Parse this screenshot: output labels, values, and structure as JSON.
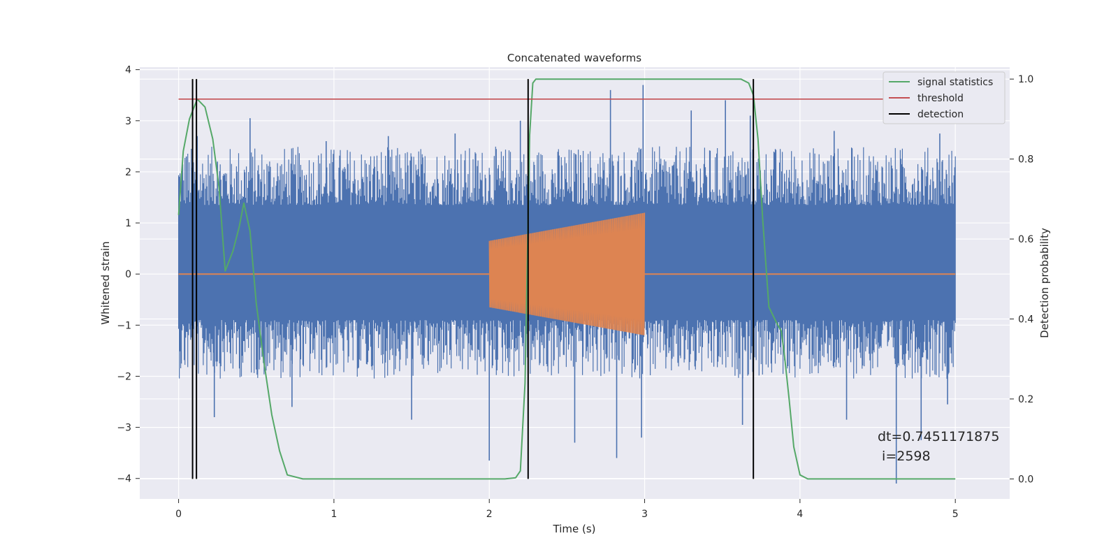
{
  "chart_data": {
    "type": "line",
    "title": "Concatenated waveforms",
    "xlabel": "Time (s)",
    "ylabel": "Whitened strain",
    "y2label": "Detection probability",
    "xlim": [
      -0.25,
      5.35
    ],
    "ylim": [
      -4.4,
      4.05
    ],
    "y2lim": [
      -0.05,
      1.03
    ],
    "x_ticks": [
      0,
      1,
      2,
      3,
      4,
      5
    ],
    "y_ticks": [
      -4,
      -3,
      -2,
      -1,
      0,
      1,
      2,
      3,
      4
    ],
    "y2_ticks": [
      0.0,
      0.2,
      0.4,
      0.6,
      0.8,
      1.0
    ],
    "x_tick_labels": [
      "0",
      "1",
      "2",
      "3",
      "4",
      "5"
    ],
    "y_tick_labels": [
      "−4",
      "−3",
      "−2",
      "−1",
      "0",
      "1",
      "2",
      "3",
      "4"
    ],
    "y2_tick_labels": [
      "0.0",
      "0.2",
      "0.4",
      "0.6",
      "0.8",
      "1.0"
    ],
    "grid": true,
    "legend_position": "top-right",
    "legend": [
      {
        "label": "signal statistics",
        "color": "#55a868"
      },
      {
        "label": "threshold",
        "color": "#c44e52"
      },
      {
        "label": "detection",
        "color": "#000000"
      }
    ],
    "colors": {
      "noise": "#4c72b0",
      "injection": "#dd8452",
      "statistic": "#55a868",
      "threshold": "#c44e52",
      "detection": "#000000",
      "background": "#eaeaf2",
      "grid": "#ffffff"
    },
    "noise": {
      "x_range": [
        0,
        5
      ],
      "band": [
        -0.9,
        1.35
      ],
      "spikes_up": [
        [
          0.05,
          2.3
        ],
        [
          0.12,
          2.7
        ],
        [
          0.25,
          2.2
        ],
        [
          0.46,
          3.05
        ],
        [
          0.95,
          2.6
        ],
        [
          1.35,
          2.7
        ],
        [
          1.78,
          2.75
        ],
        [
          2.2,
          3.0
        ],
        [
          2.78,
          3.6
        ],
        [
          2.99,
          3.7
        ],
        [
          3.3,
          3.2
        ],
        [
          3.52,
          3.4
        ],
        [
          3.68,
          3.1
        ],
        [
          4.22,
          2.8
        ],
        [
          4.9,
          2.75
        ]
      ],
      "spikes_down": [
        [
          0.23,
          -2.8
        ],
        [
          0.73,
          -2.6
        ],
        [
          1.5,
          -2.85
        ],
        [
          2.0,
          -3.65
        ],
        [
          2.55,
          -3.3
        ],
        [
          2.82,
          -3.6
        ],
        [
          2.98,
          -3.2
        ],
        [
          3.63,
          -2.95
        ],
        [
          4.3,
          -2.85
        ],
        [
          4.62,
          -4.1
        ],
        [
          4.78,
          -3.25
        ],
        [
          4.95,
          -2.55
        ]
      ]
    },
    "injection": {
      "start": 2.0,
      "end": 3.0,
      "amp_start": 0.65,
      "amp_end": 1.2
    },
    "statistic": {
      "x": [
        0.0,
        0.03,
        0.07,
        0.12,
        0.17,
        0.22,
        0.26,
        0.3,
        0.35,
        0.39,
        0.42,
        0.46,
        0.5,
        0.55,
        0.6,
        0.65,
        0.7,
        0.8,
        1.0,
        1.5,
        2.0,
        2.1,
        2.17,
        2.2,
        2.23,
        2.26,
        2.28,
        2.3,
        2.35,
        2.5,
        3.0,
        3.5,
        3.62,
        3.67,
        3.7,
        3.73,
        3.76,
        3.8,
        3.85,
        3.88,
        3.9,
        3.93,
        3.96,
        4.0,
        4.05,
        4.5,
        5.0
      ],
      "y": [
        0.66,
        0.82,
        0.9,
        0.95,
        0.93,
        0.85,
        0.73,
        0.52,
        0.57,
        0.63,
        0.69,
        0.62,
        0.44,
        0.29,
        0.16,
        0.07,
        0.01,
        0.0,
        0.0,
        0.0,
        0.0,
        0.0,
        0.003,
        0.02,
        0.24,
        0.86,
        0.99,
        1.0,
        1.0,
        1.0,
        1.0,
        1.0,
        1.0,
        0.99,
        0.96,
        0.85,
        0.65,
        0.43,
        0.39,
        0.37,
        0.31,
        0.2,
        0.08,
        0.01,
        0.0,
        0.0,
        0.0
      ]
    },
    "threshold": {
      "x_range": [
        0,
        5.1
      ],
      "value": 0.95
    },
    "detections": [
      0.09,
      0.115,
      2.25,
      3.7
    ],
    "annotation": {
      "dt": "dt=0.7451171875",
      "i": " i=2598",
      "x": 4.5,
      "y": -3.15
    }
  }
}
